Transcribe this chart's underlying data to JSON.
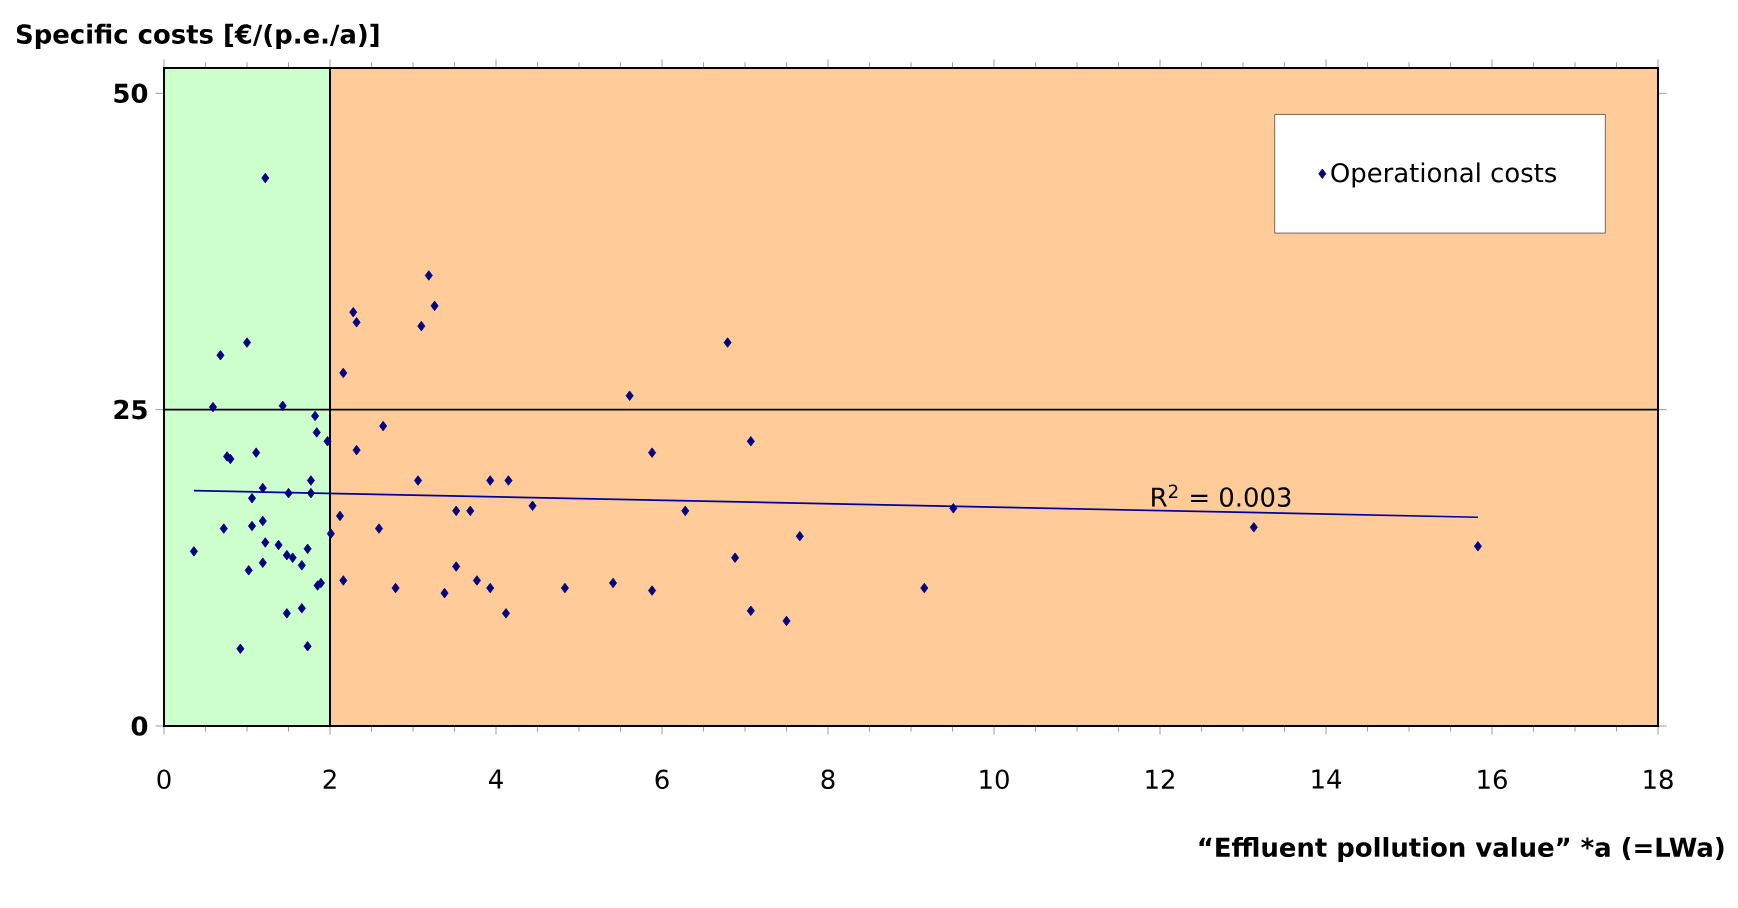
{
  "chart_data": {
    "type": "scatter",
    "xlabel": "“Effluent pollution value” *a (=LWa)",
    "ylabel": "Specific costs [€/(p.e./a)]",
    "xlim": [
      0,
      18
    ],
    "xticks": [
      0,
      2,
      4,
      6,
      8,
      10,
      12,
      14,
      16,
      18
    ],
    "ylim": [
      0,
      52
    ],
    "yticks": [
      0,
      25,
      50
    ],
    "legend": "top right",
    "bands": [
      {
        "axis": "x",
        "from": 0,
        "to": 2,
        "color": "#ccffcc"
      },
      {
        "axis": "x",
        "from": 2,
        "to": 18,
        "color": "#ffcc99"
      }
    ],
    "ref_lines": [
      {
        "axis": "y",
        "value": 25,
        "color": "#000000"
      }
    ],
    "annotations": [
      "R$^{2}$ = 0.003"
    ],
    "series": [
      {
        "name": "Operational costs",
        "marker": "diamond",
        "color": "#000080",
        "x": [
          1.22,
          3.19,
          3.26,
          2.28,
          2.32,
          3.1,
          1.0,
          0.68,
          2.16,
          0.59,
          1.43,
          1.82,
          2.64,
          1.84,
          1.97,
          2.32,
          0.76,
          0.8,
          1.11,
          1.77,
          3.06,
          3.93,
          4.15,
          1.19,
          1.06,
          1.5,
          1.77,
          4.44,
          3.52,
          3.69,
          2.12,
          2.59,
          0.72,
          1.06,
          1.19,
          2.01,
          0.36,
          1.22,
          1.38,
          1.73,
          1.48,
          1.55,
          1.66,
          1.19,
          1.02,
          3.52,
          2.16,
          1.89,
          1.85,
          2.79,
          3.38,
          3.77,
          3.93,
          4.12,
          1.66,
          1.48,
          0.92,
          1.73,
          6.79,
          5.61,
          5.88,
          7.07,
          6.28,
          9.51,
          7.66,
          6.88,
          4.83,
          5.41,
          5.88,
          7.07,
          7.5,
          9.16,
          13.13,
          15.83
        ],
        "values": [
          43.3,
          35.6,
          33.2,
          32.7,
          31.9,
          31.6,
          30.3,
          29.3,
          27.9,
          25.2,
          25.3,
          24.5,
          23.7,
          23.2,
          22.5,
          21.8,
          21.3,
          21.1,
          21.6,
          19.4,
          19.4,
          19.4,
          19.4,
          18.8,
          18.0,
          18.4,
          18.4,
          17.4,
          17.0,
          17.0,
          16.6,
          15.6,
          15.6,
          15.8,
          16.2,
          15.2,
          13.8,
          14.5,
          14.3,
          14.0,
          13.5,
          13.3,
          12.7,
          12.9,
          12.3,
          12.6,
          11.5,
          11.3,
          11.1,
          10.9,
          10.5,
          11.5,
          10.9,
          8.9,
          9.3,
          8.9,
          6.1,
          6.3,
          30.3,
          26.1,
          21.6,
          22.5,
          17.0,
          17.2,
          15.0,
          13.3,
          10.9,
          11.3,
          10.7,
          9.1,
          8.3,
          10.9,
          15.7,
          14.2
        ]
      },
      {
        "type": "line",
        "color": "#0000a0",
        "x": [
          0.36,
          15.83
        ],
        "values": [
          18.6,
          16.5
        ]
      }
    ]
  }
}
